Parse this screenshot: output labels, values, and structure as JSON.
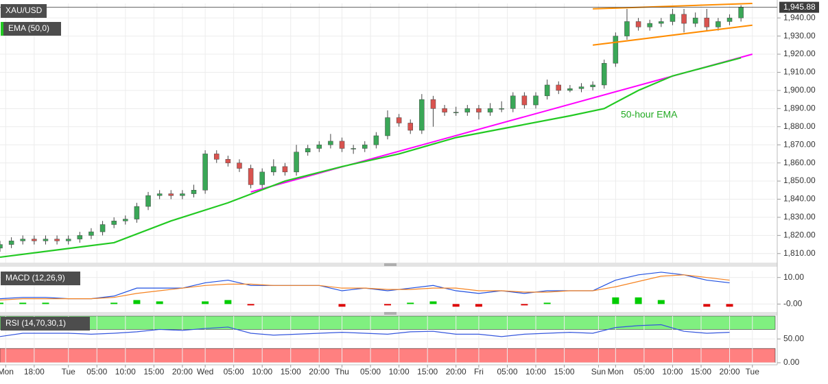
{
  "chart_data": [
    {
      "type": "candlestick",
      "title": "XAU/USD",
      "xlim": [
        0,
        136
      ],
      "ylim": [
        1805,
        1948
      ],
      "yticks": [
        {
          "value": 1810,
          "label": "1,810.00"
        },
        {
          "value": 1820,
          "label": "1,820.00"
        },
        {
          "value": 1830,
          "label": "1,830.00"
        },
        {
          "value": 1840,
          "label": "1,840.00"
        },
        {
          "value": 1850,
          "label": "1,850.00"
        },
        {
          "value": 1860,
          "label": "1,860.00"
        },
        {
          "value": 1870,
          "label": "1,870.00"
        },
        {
          "value": 1880,
          "label": "1,880.00"
        },
        {
          "value": 1890,
          "label": "1,890.00"
        },
        {
          "value": 1900,
          "label": "1,900.00"
        },
        {
          "value": 1910,
          "label": "1,910.00"
        },
        {
          "value": 1920,
          "label": "1,920.00"
        },
        {
          "value": 1930,
          "label": "1,930.00"
        },
        {
          "value": 1940,
          "label": "1,940.00"
        }
      ],
      "last_price": {
        "value": 1945.88,
        "label": "1,945.88"
      },
      "up_color": "#3aa757",
      "down_color": "#d9534f",
      "x": [
        0,
        2,
        4,
        6,
        8,
        10,
        12,
        14,
        16,
        18,
        20,
        22,
        24,
        26,
        28,
        30,
        32,
        34,
        36,
        38,
        40,
        42,
        44,
        46,
        48,
        50,
        52,
        54,
        56,
        58,
        60,
        62,
        64,
        66,
        68,
        70,
        72,
        74,
        76,
        78,
        80,
        82,
        84,
        86,
        88,
        90,
        92,
        94,
        96,
        98,
        100,
        102,
        104,
        106,
        108,
        110,
        112,
        114,
        116,
        118,
        120,
        122,
        124,
        126,
        128,
        130
      ],
      "open": [
        1813,
        1815,
        1817,
        1818,
        1817,
        1818,
        1817,
        1818,
        1820,
        1822,
        1826,
        1828,
        1829,
        1836,
        1842,
        1843,
        1842,
        1843,
        1845,
        1865,
        1862,
        1860,
        1857,
        1848,
        1855,
        1858,
        1855,
        1866,
        1868,
        1870,
        1872,
        1868,
        1868,
        1870,
        1875,
        1885,
        1882,
        1878,
        1895,
        1890,
        1888,
        1888,
        1890,
        1888,
        1890,
        1890,
        1897,
        1892,
        1897,
        1903,
        1900,
        1901,
        1902,
        1903,
        1915,
        1930,
        1938,
        1935,
        1937,
        1938,
        1942,
        1937,
        1940,
        1935,
        1938,
        1940
      ],
      "high": [
        1817,
        1819,
        1820,
        1820,
        1820,
        1820,
        1820,
        1822,
        1824,
        1828,
        1830,
        1831,
        1838,
        1844,
        1845,
        1845,
        1845,
        1848,
        1867,
        1867,
        1864,
        1862,
        1859,
        1857,
        1862,
        1860,
        1870,
        1870,
        1872,
        1876,
        1874,
        1870,
        1872,
        1877,
        1889,
        1887,
        1884,
        1898,
        1897,
        1892,
        1891,
        1892,
        1892,
        1893,
        1894,
        1899,
        1899,
        1899,
        1906,
        1905,
        1903,
        1904,
        1905,
        1917,
        1932,
        1945,
        1940,
        1939,
        1940,
        1945,
        1945,
        1943,
        1945,
        1940,
        1942,
        1947
      ],
      "low": [
        1811,
        1813,
        1815,
        1815,
        1815,
        1815,
        1815,
        1816,
        1818,
        1820,
        1824,
        1826,
        1827,
        1834,
        1840,
        1840,
        1840,
        1841,
        1843,
        1860,
        1858,
        1855,
        1846,
        1846,
        1853,
        1853,
        1853,
        1864,
        1866,
        1868,
        1866,
        1865,
        1866,
        1868,
        1873,
        1880,
        1876,
        1876,
        1880,
        1886,
        1886,
        1886,
        1884,
        1886,
        1888,
        1888,
        1890,
        1890,
        1895,
        1898,
        1899,
        1899,
        1900,
        1901,
        1913,
        1928,
        1933,
        1933,
        1935,
        1936,
        1932,
        1935,
        1933,
        1933,
        1936,
        1938
      ],
      "close": [
        1815,
        1817,
        1818,
        1817,
        1818,
        1817,
        1818,
        1820,
        1822,
        1826,
        1828,
        1829,
        1836,
        1842,
        1843,
        1842,
        1843,
        1845,
        1865,
        1862,
        1860,
        1857,
        1848,
        1855,
        1858,
        1855,
        1866,
        1868,
        1870,
        1872,
        1868,
        1868,
        1870,
        1875,
        1885,
        1882,
        1878,
        1895,
        1890,
        1888,
        1888,
        1890,
        1888,
        1890,
        1890,
        1897,
        1892,
        1897,
        1903,
        1900,
        1901,
        1902,
        1903,
        1915,
        1930,
        1938,
        1935,
        1937,
        1938,
        1942,
        1937,
        1940,
        1935,
        1938,
        1940,
        1946
      ],
      "series": [
        {
          "name": "EMA (50,0)",
          "color": "#22c922",
          "x": [
            0,
            10,
            20,
            30,
            40,
            50,
            60,
            70,
            80,
            90,
            100,
            106,
            112,
            118,
            124,
            130
          ],
          "values": [
            1808,
            1812,
            1816,
            1828,
            1838,
            1850,
            1858,
            1865,
            1874,
            1880,
            1886,
            1890,
            1900,
            1908,
            1913,
            1918
          ]
        }
      ],
      "trendlines": [
        {
          "color": "#ff00ff",
          "x": [
            44,
            132
          ],
          "values": [
            1844,
            1920
          ]
        },
        {
          "color": "#ff8c00",
          "x": [
            104,
            132
          ],
          "values": [
            1945,
            1948
          ]
        },
        {
          "color": "#ff8c00",
          "x": [
            104,
            132
          ],
          "values": [
            1925,
            1936
          ]
        }
      ],
      "annotation": "50-hour EMA"
    },
    {
      "type": "line",
      "title": "MACD (12,26,9)",
      "xlim": [
        0,
        136
      ],
      "ylim": [
        -3,
        12.5
      ],
      "yticks": [
        {
          "value": 10,
          "label": "10.00"
        },
        {
          "value": 0,
          "label": "-0.00"
        }
      ],
      "series": [
        {
          "type": "bar",
          "color": "#00cc00",
          "negative_color": "#dd0000",
          "x": [
            0,
            4,
            8,
            12,
            16,
            20,
            24,
            28,
            32,
            36,
            40,
            44,
            48,
            52,
            56,
            60,
            64,
            68,
            72,
            76,
            80,
            84,
            88,
            92,
            96,
            100,
            104,
            108,
            112,
            116,
            120,
            124,
            128
          ],
          "values": [
            0.5,
            0.5,
            0.5,
            0,
            0,
            0.5,
            1.5,
            1,
            0,
            1,
            1.5,
            -0.5,
            0,
            0,
            0,
            -1,
            0,
            -0.5,
            0.5,
            1,
            -1,
            -1,
            0,
            -0.5,
            0.5,
            0,
            0,
            2.5,
            2.5,
            1.5,
            0,
            -1,
            -1
          ]
        },
        {
          "type": "line",
          "color": "#1f4fe0",
          "x": [
            0,
            4,
            8,
            12,
            16,
            20,
            24,
            28,
            32,
            36,
            40,
            44,
            48,
            52,
            56,
            60,
            64,
            68,
            72,
            76,
            80,
            84,
            88,
            92,
            96,
            100,
            104,
            108,
            112,
            116,
            120,
            124,
            128
          ],
          "values": [
            2,
            2.5,
            2.5,
            2,
            2,
            3,
            6,
            6,
            6,
            8,
            9,
            7,
            7,
            7,
            7,
            5,
            6,
            5,
            6,
            7,
            5,
            4,
            5,
            4,
            5,
            5,
            5,
            9,
            11,
            12,
            11,
            9,
            8
          ]
        },
        {
          "type": "line",
          "color": "#f5821f",
          "x": [
            0,
            4,
            8,
            12,
            16,
            20,
            24,
            28,
            32,
            36,
            40,
            44,
            48,
            52,
            56,
            60,
            64,
            68,
            72,
            76,
            80,
            84,
            88,
            92,
            96,
            100,
            104,
            108,
            112,
            116,
            120,
            124,
            128
          ],
          "values": [
            1.5,
            2,
            2,
            2,
            2,
            2.5,
            4,
            5,
            6,
            7,
            7.5,
            7.5,
            7,
            7,
            7,
            6,
            6,
            5.5,
            5.5,
            6,
            6,
            5,
            5,
            4.5,
            4.5,
            5,
            5,
            6.5,
            8.5,
            10.5,
            11,
            10,
            9
          ]
        }
      ]
    },
    {
      "type": "line",
      "title": "RSI (14,70,30,1)",
      "xlim": [
        0,
        136
      ],
      "ylim": [
        0,
        98
      ],
      "yticks": [
        {
          "value": 50,
          "label": "50.00"
        },
        {
          "value": 0,
          "label": "0.00"
        }
      ],
      "overbought": 70,
      "oversold": 30,
      "overbought_color": "#80f080",
      "oversold_color": "#ff8080",
      "series": [
        {
          "type": "line",
          "color": "#3355dd",
          "x": [
            0,
            4,
            8,
            12,
            16,
            20,
            24,
            28,
            32,
            36,
            40,
            44,
            48,
            52,
            56,
            60,
            64,
            68,
            72,
            76,
            80,
            84,
            88,
            92,
            96,
            100,
            104,
            108,
            112,
            116,
            120,
            124,
            128
          ],
          "values": [
            55,
            62,
            62,
            62,
            60,
            62,
            65,
            70,
            68,
            72,
            75,
            62,
            58,
            60,
            62,
            64,
            62,
            60,
            65,
            66,
            60,
            60,
            55,
            60,
            62,
            64,
            62,
            74,
            78,
            80,
            66,
            62,
            64
          ]
        }
      ],
      "xticks": [
        {
          "value": 1,
          "label": "Mon"
        },
        {
          "value": 6,
          "label": "18:00"
        },
        {
          "value": 12,
          "label": "Tue"
        },
        {
          "value": 17,
          "label": "05:00"
        },
        {
          "value": 22,
          "label": "10:00"
        },
        {
          "value": 27,
          "label": "15:00"
        },
        {
          "value": 32,
          "label": "20:00"
        },
        {
          "value": 36,
          "label": "Wed"
        },
        {
          "value": 41,
          "label": "05:00"
        },
        {
          "value": 46,
          "label": "10:00"
        },
        {
          "value": 51,
          "label": "15:00"
        },
        {
          "value": 56,
          "label": "20:00"
        },
        {
          "value": 60,
          "label": "Thu"
        },
        {
          "value": 65,
          "label": "05:00"
        },
        {
          "value": 70,
          "label": "10:00"
        },
        {
          "value": 75,
          "label": "15:00"
        },
        {
          "value": 80,
          "label": "20:00"
        },
        {
          "value": 84,
          "label": "Fri"
        },
        {
          "value": 89,
          "label": "05:00"
        },
        {
          "value": 94,
          "label": "10:00"
        },
        {
          "value": 99,
          "label": "15:00"
        },
        {
          "value": 105,
          "label": "Sun"
        },
        {
          "value": 108,
          "label": "Mon"
        },
        {
          "value": 113,
          "label": "05:00"
        },
        {
          "value": 118,
          "label": "10:00"
        },
        {
          "value": 123,
          "label": "15:00"
        },
        {
          "value": 128,
          "label": "20:00"
        },
        {
          "value": 132,
          "label": "Tue"
        }
      ]
    }
  ]
}
